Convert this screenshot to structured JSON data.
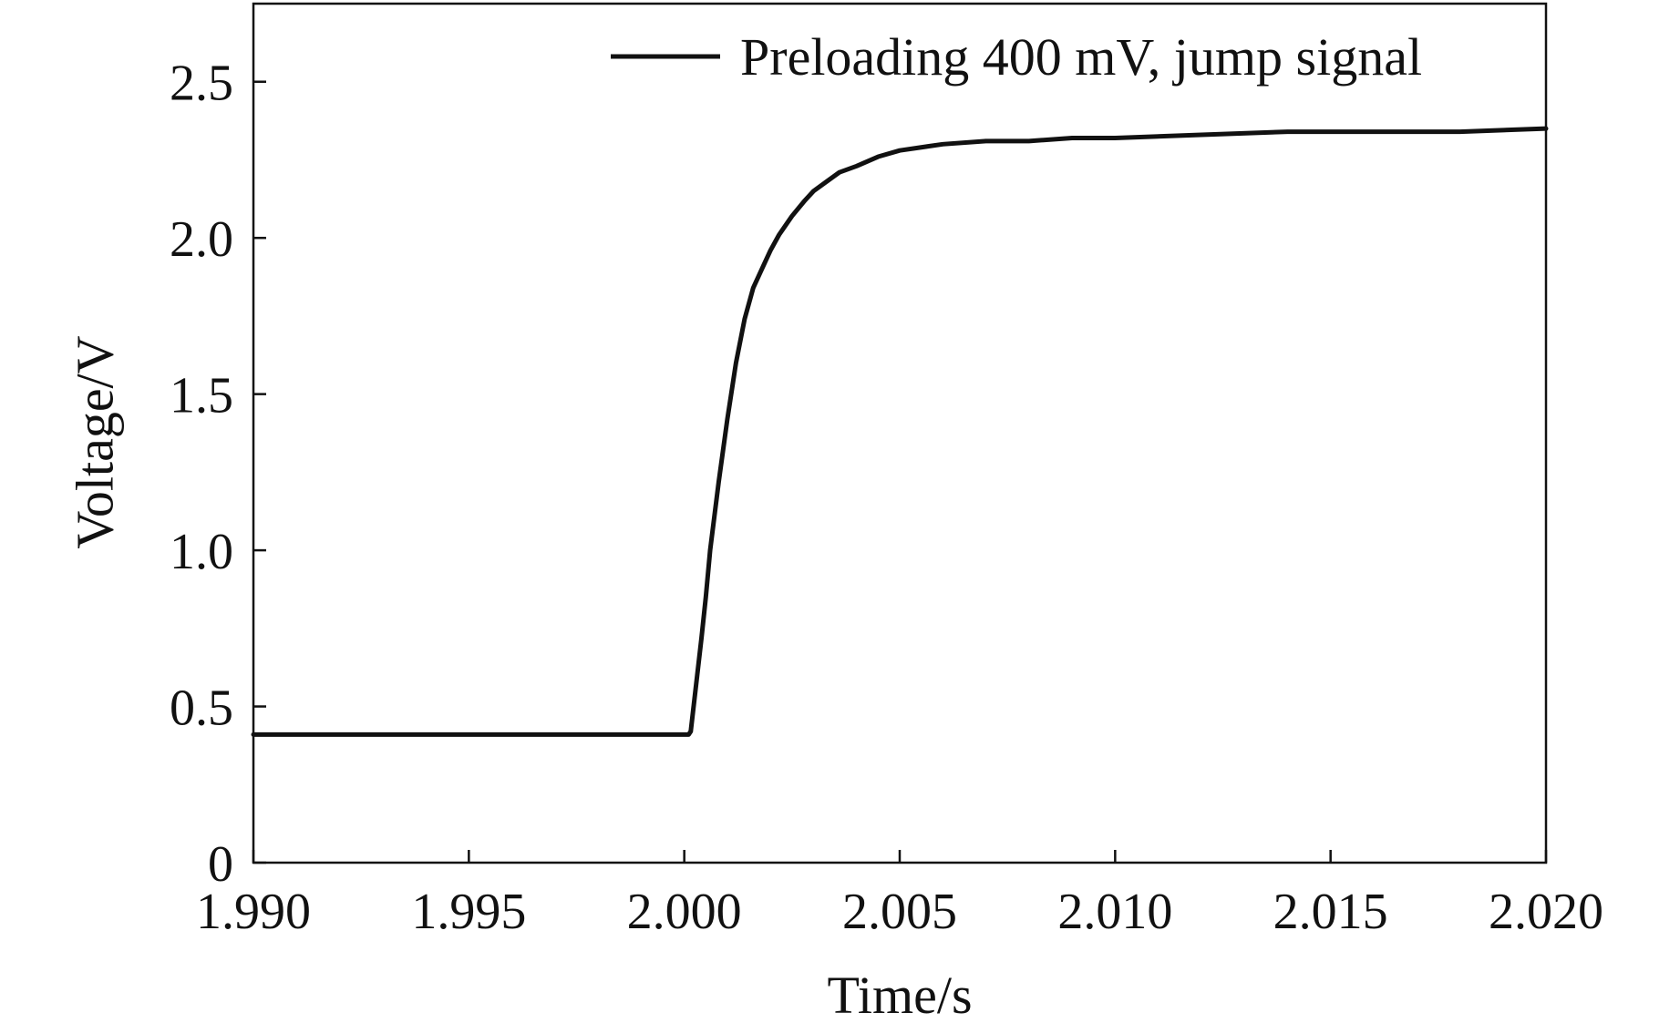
{
  "chart_data": {
    "type": "line",
    "title": "",
    "xlabel": "Time/s",
    "ylabel": "Voltage/V",
    "xlim": [
      1.99,
      2.02
    ],
    "ylim": [
      0,
      2.75
    ],
    "x_ticks": [
      1.99,
      1.995,
      2.0,
      2.005,
      2.01,
      2.015,
      2.02
    ],
    "x_tick_labels": [
      "1.990",
      "1.995",
      "2.000",
      "2.005",
      "2.010",
      "2.015",
      "2.020"
    ],
    "y_ticks": [
      0,
      0.5,
      1.0,
      1.5,
      2.0,
      2.5
    ],
    "y_tick_labels": [
      "0",
      "0.5",
      "1.0",
      "1.5",
      "2.0",
      "2.5"
    ],
    "grid": false,
    "legend_position": "top-right",
    "series": [
      {
        "name": "Preloading 400 mV, jump signal",
        "color": "#111111",
        "x": [
          1.99,
          1.995,
          2.0,
          2.0001,
          2.00015,
          2.0002,
          2.0003,
          2.0004,
          2.0005,
          2.0006,
          2.0008,
          2.001,
          2.0012,
          2.0014,
          2.0016,
          2.0018,
          2.002,
          2.0022,
          2.0025,
          2.0028,
          2.003,
          2.0033,
          2.0036,
          2.004,
          2.0045,
          2.005,
          2.0055,
          2.006,
          2.007,
          2.008,
          2.009,
          2.01,
          2.012,
          2.014,
          2.016,
          2.018,
          2.02
        ],
        "y": [
          0.41,
          0.41,
          0.41,
          0.41,
          0.42,
          0.48,
          0.6,
          0.72,
          0.85,
          1.0,
          1.22,
          1.42,
          1.6,
          1.74,
          1.84,
          1.9,
          1.96,
          2.01,
          2.07,
          2.12,
          2.15,
          2.18,
          2.21,
          2.23,
          2.26,
          2.28,
          2.29,
          2.3,
          2.31,
          2.31,
          2.32,
          2.32,
          2.33,
          2.34,
          2.34,
          2.34,
          2.35
        ]
      }
    ]
  }
}
